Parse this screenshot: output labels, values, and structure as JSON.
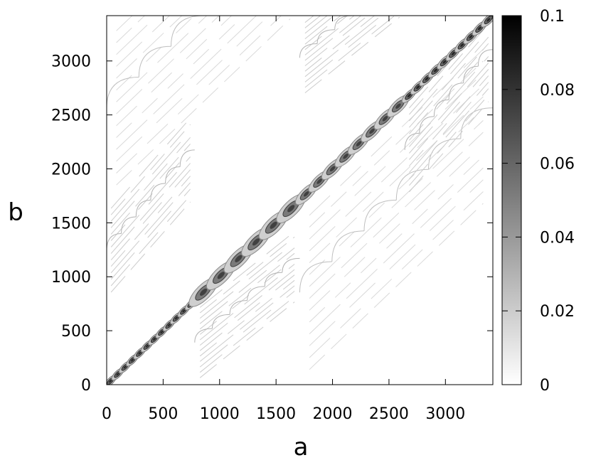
{
  "chart_data": {
    "type": "heatmap",
    "title": "",
    "xlabel": "a",
    "ylabel": "b",
    "xlim": [
      0,
      3420
    ],
    "ylim": [
      0,
      3420
    ],
    "xticks": [
      0,
      500,
      1000,
      1500,
      2000,
      2500,
      3000
    ],
    "yticks": [
      0,
      500,
      1000,
      1500,
      2000,
      2500,
      3000
    ],
    "xtick_labels": [
      "0",
      "500",
      "1000",
      "1500",
      "2000",
      "2500",
      "3000"
    ],
    "ytick_labels": [
      "0",
      "500",
      "1000",
      "1500",
      "2000",
      "2500",
      "3000"
    ],
    "colorbar": {
      "range": [
        0,
        0.1
      ],
      "ticks": [
        0,
        0.02,
        0.04,
        0.06,
        0.08,
        0.1
      ],
      "tick_labels": [
        "0",
        "0.02",
        "0.04",
        "0.06",
        "0.08",
        "0.1"
      ],
      "colormap": "grayscale (white = 0, black = 0.1)"
    },
    "structure": {
      "description": "self-similar block pattern: dense dark diagonal with lens-shaped clusters; faint parallel diagonal streaks in off-diagonal blocks",
      "main_diagonal_lenses": [
        {
          "start": 0,
          "end": 780,
          "count": 12,
          "intensity": 0.085
        },
        {
          "start": 780,
          "end": 1710,
          "count": 6,
          "intensity": 0.075
        },
        {
          "start": 1710,
          "end": 2640,
          "count": 8,
          "intensity": 0.075
        },
        {
          "start": 2640,
          "end": 3420,
          "count": 10,
          "intensity": 0.085
        }
      ],
      "off_diagonal_blocks": [
        {
          "a": [
            0,
            780
          ],
          "b": [
            780,
            1710
          ],
          "intensity": 0.02
        },
        {
          "a": [
            780,
            1710
          ],
          "b": [
            0,
            780
          ],
          "intensity": 0.02
        },
        {
          "a": [
            0,
            1710
          ],
          "b": [
            1710,
            3420
          ],
          "intensity": 0.015
        },
        {
          "a": [
            1710,
            3420
          ],
          "b": [
            0,
            1710
          ],
          "intensity": 0.015
        },
        {
          "a": [
            1710,
            2640
          ],
          "b": [
            2640,
            3420
          ],
          "intensity": 0.02
        },
        {
          "a": [
            2640,
            3420
          ],
          "b": [
            1710,
            2640
          ],
          "intensity": 0.02
        }
      ]
    }
  }
}
